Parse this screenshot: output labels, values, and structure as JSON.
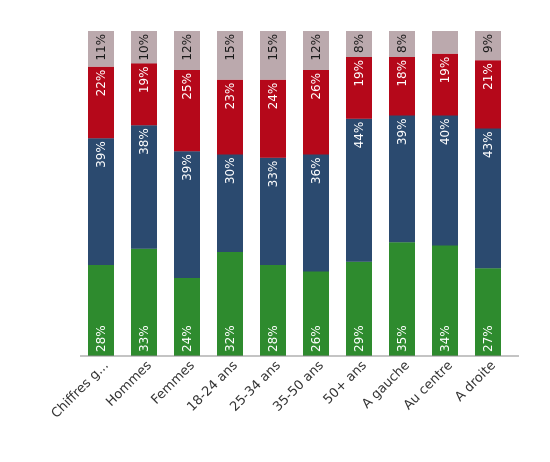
{
  "chart_data": {
    "type": "bar",
    "stacked": true,
    "categories": [
      "Chiffres g...",
      "Hommes",
      "Femmes",
      "18-24 ans",
      "25-34 ans",
      "35-50 ans",
      "50+ ans",
      "A gauche",
      "Au centre",
      "A droite"
    ],
    "series": [
      {
        "color": "#2e8b2e",
        "label_color": "#ffffff",
        "values": [
          28,
          33,
          24,
          32,
          28,
          26,
          29,
          35,
          34,
          27
        ],
        "labels": [
          "28%",
          "33%",
          "24%",
          "32%",
          "28%",
          "26%",
          "29%",
          "35%",
          "34%",
          "27%"
        ]
      },
      {
        "color": "#2b4a6f",
        "label_color": "#ffffff",
        "values": [
          39,
          38,
          39,
          30,
          33,
          36,
          44,
          39,
          40,
          43
        ],
        "labels": [
          "39%",
          "38%",
          "39%",
          "30%",
          "33%",
          "36%",
          "44%",
          "39%",
          "40%",
          "43%"
        ]
      },
      {
        "color": "#b5081a",
        "label_color": "#ffffff",
        "values": [
          22,
          19,
          25,
          23,
          24,
          26,
          19,
          18,
          19,
          21
        ],
        "labels": [
          "22%",
          "19%",
          "25%",
          "23%",
          "24%",
          "26%",
          "19%",
          "18%",
          "19%",
          "21%"
        ]
      },
      {
        "color": "#bba9ad",
        "label_color": "#1a1a1a",
        "values": [
          11,
          10,
          12,
          15,
          15,
          12,
          8,
          8,
          7,
          9
        ],
        "labels": [
          "11%",
          "10%",
          "12%",
          "15%",
          "15%",
          "12%",
          "8%",
          "8%",
          "",
          "9%"
        ]
      }
    ],
    "ylim": [
      0,
      100
    ],
    "grid": false,
    "legend": "none"
  }
}
